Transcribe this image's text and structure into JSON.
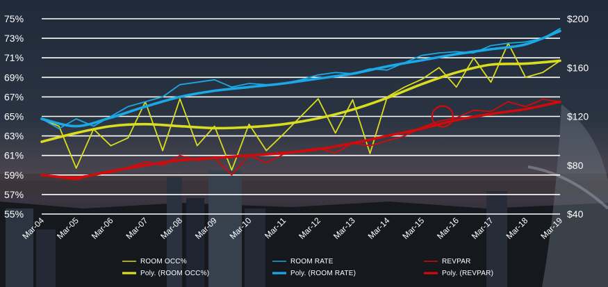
{
  "chart_data": {
    "type": "line",
    "background": "dark night-time city skyline photograph",
    "colors": {
      "room_occ": "#d9dc1f",
      "room_rate": "#1ba8e6",
      "revpar": "#d40a0a",
      "gridline": "#ffffff",
      "text": "#ffffff"
    },
    "x_labels": [
      "Mar-04",
      "Mar-05",
      "Mar-06",
      "Mar-07",
      "Mar-08",
      "Mar-09",
      "Mar-10",
      "Mar-11",
      "Mar-12",
      "Mar-13",
      "Mar-14",
      "Mar-15",
      "Mar-16",
      "Mar-17",
      "Mar-18",
      "Mar-19"
    ],
    "y_left": {
      "unit": "percent",
      "ticks": [
        "75%",
        "73%",
        "71%",
        "69%",
        "67%",
        "65%",
        "63%",
        "61%",
        "59%",
        "57%",
        "55%"
      ],
      "range": [
        55,
        75
      ]
    },
    "y_right": {
      "unit": "dollars",
      "ticks": [
        "$200",
        "$160",
        "$120",
        "$80",
        "$40"
      ],
      "range": [
        40,
        200
      ]
    },
    "grid": "horizontal",
    "legend_position": "bottom",
    "highlight_annotation": {
      "shape": "circle",
      "color": "#d40a0a",
      "x": 11.6,
      "y_right": 120
    },
    "series": [
      {
        "name": "ROOM OCC%",
        "axis": "left",
        "style": "thin",
        "x": [
          0,
          0.5,
          1,
          1.5,
          2,
          2.5,
          3,
          3.5,
          4,
          4.5,
          5,
          5.5,
          6,
          6.5,
          7,
          7.5,
          8,
          8.5,
          9,
          9.5,
          10,
          10.5,
          11,
          11.5,
          12,
          12.5,
          13,
          13.5,
          14,
          14.5,
          15
        ],
        "y": [
          64.7,
          64.0,
          59.7,
          63.7,
          62.0,
          62.8,
          66.5,
          61.5,
          66.8,
          62.0,
          64.0,
          59.5,
          64.2,
          61.5,
          63.2,
          65.0,
          66.8,
          63.3,
          66.7,
          61.2,
          67.0,
          68.0,
          68.8,
          70.0,
          68.0,
          71.0,
          68.5,
          72.5,
          69.0,
          69.5,
          70.7
        ]
      },
      {
        "name": "Poly. (ROOM OCC%)",
        "axis": "left",
        "style": "thick",
        "x": [
          0,
          1,
          2,
          3,
          4,
          5,
          6,
          7,
          8,
          9,
          10,
          11,
          12,
          13,
          14,
          15
        ],
        "y": [
          62.4,
          63.3,
          64.0,
          64.2,
          64.0,
          63.8,
          63.9,
          64.2,
          64.8,
          65.7,
          66.9,
          68.3,
          69.5,
          70.3,
          70.4,
          70.7
        ]
      },
      {
        "name": "ROOM RATE",
        "axis": "right",
        "style": "thin",
        "x": [
          0,
          0.5,
          1,
          1.5,
          2,
          2.5,
          3,
          3.5,
          4,
          4.5,
          5,
          5.5,
          6,
          6.5,
          7,
          7.5,
          8,
          8.5,
          9,
          9.5,
          10,
          10.5,
          11,
          11.5,
          12,
          12.5,
          13,
          13.5,
          14,
          14.5,
          15
        ],
        "y": [
          118,
          110,
          118,
          112,
          120,
          128,
          132,
          136,
          146,
          148,
          150,
          144,
          147,
          146,
          147,
          150,
          154,
          156,
          155,
          159,
          158,
          164,
          170,
          172,
          173,
          172,
          178,
          180,
          181,
          184,
          192
        ]
      },
      {
        "name": "Poly. (ROOM RATE)",
        "axis": "right",
        "style": "thick",
        "x": [
          0,
          1,
          2,
          3,
          4,
          5,
          6,
          7,
          8,
          9,
          10,
          11,
          12,
          13,
          14,
          15
        ],
        "y": [
          118,
          112,
          119,
          128,
          136,
          141,
          144,
          147,
          151,
          155,
          161,
          166,
          171,
          175,
          179,
          190
        ]
      },
      {
        "name": "REVPAR",
        "axis": "right",
        "style": "thin",
        "x": [
          0,
          0.5,
          1,
          1.5,
          2,
          2.5,
          3,
          3.5,
          4,
          4.5,
          5,
          5.5,
          6,
          6.5,
          7,
          7.5,
          8,
          8.5,
          9,
          9.5,
          10,
          10.5,
          11,
          11.5,
          12,
          12.5,
          13,
          13.5,
          14,
          14.5,
          15
        ],
        "y": [
          72,
          70,
          68,
          72,
          74,
          78,
          83,
          80,
          88,
          84,
          86,
          72,
          88,
          82,
          89,
          92,
          94,
          90,
          98,
          96,
          100,
          104,
          111,
          116,
          119,
          125,
          124,
          132,
          128,
          134,
          132
        ]
      },
      {
        "name": "Poly. (REVPAR)",
        "axis": "right",
        "style": "thick",
        "x": [
          0,
          1,
          2,
          3,
          4,
          5,
          6,
          7,
          8,
          9,
          10,
          11,
          12,
          13,
          14,
          15
        ],
        "y": [
          72,
          70,
          75,
          80,
          84,
          86,
          88,
          90,
          93,
          98,
          104,
          110,
          117,
          122,
          126,
          132
        ]
      }
    ],
    "legend": [
      {
        "label": "ROOM OCC%",
        "color": "#d9dc1f",
        "style": "thin"
      },
      {
        "label": "ROOM RATE",
        "color": "#1ba8e6",
        "style": "thin"
      },
      {
        "label": "REVPAR",
        "color": "#d40a0a",
        "style": "thin"
      },
      {
        "label": "Poly. (ROOM OCC%)",
        "color": "#d9dc1f",
        "style": "thick"
      },
      {
        "label": "Poly. (ROOM RATE)",
        "color": "#1ba8e6",
        "style": "thick"
      },
      {
        "label": "Poly. (REVPAR)",
        "color": "#d40a0a",
        "style": "thick"
      }
    ]
  }
}
